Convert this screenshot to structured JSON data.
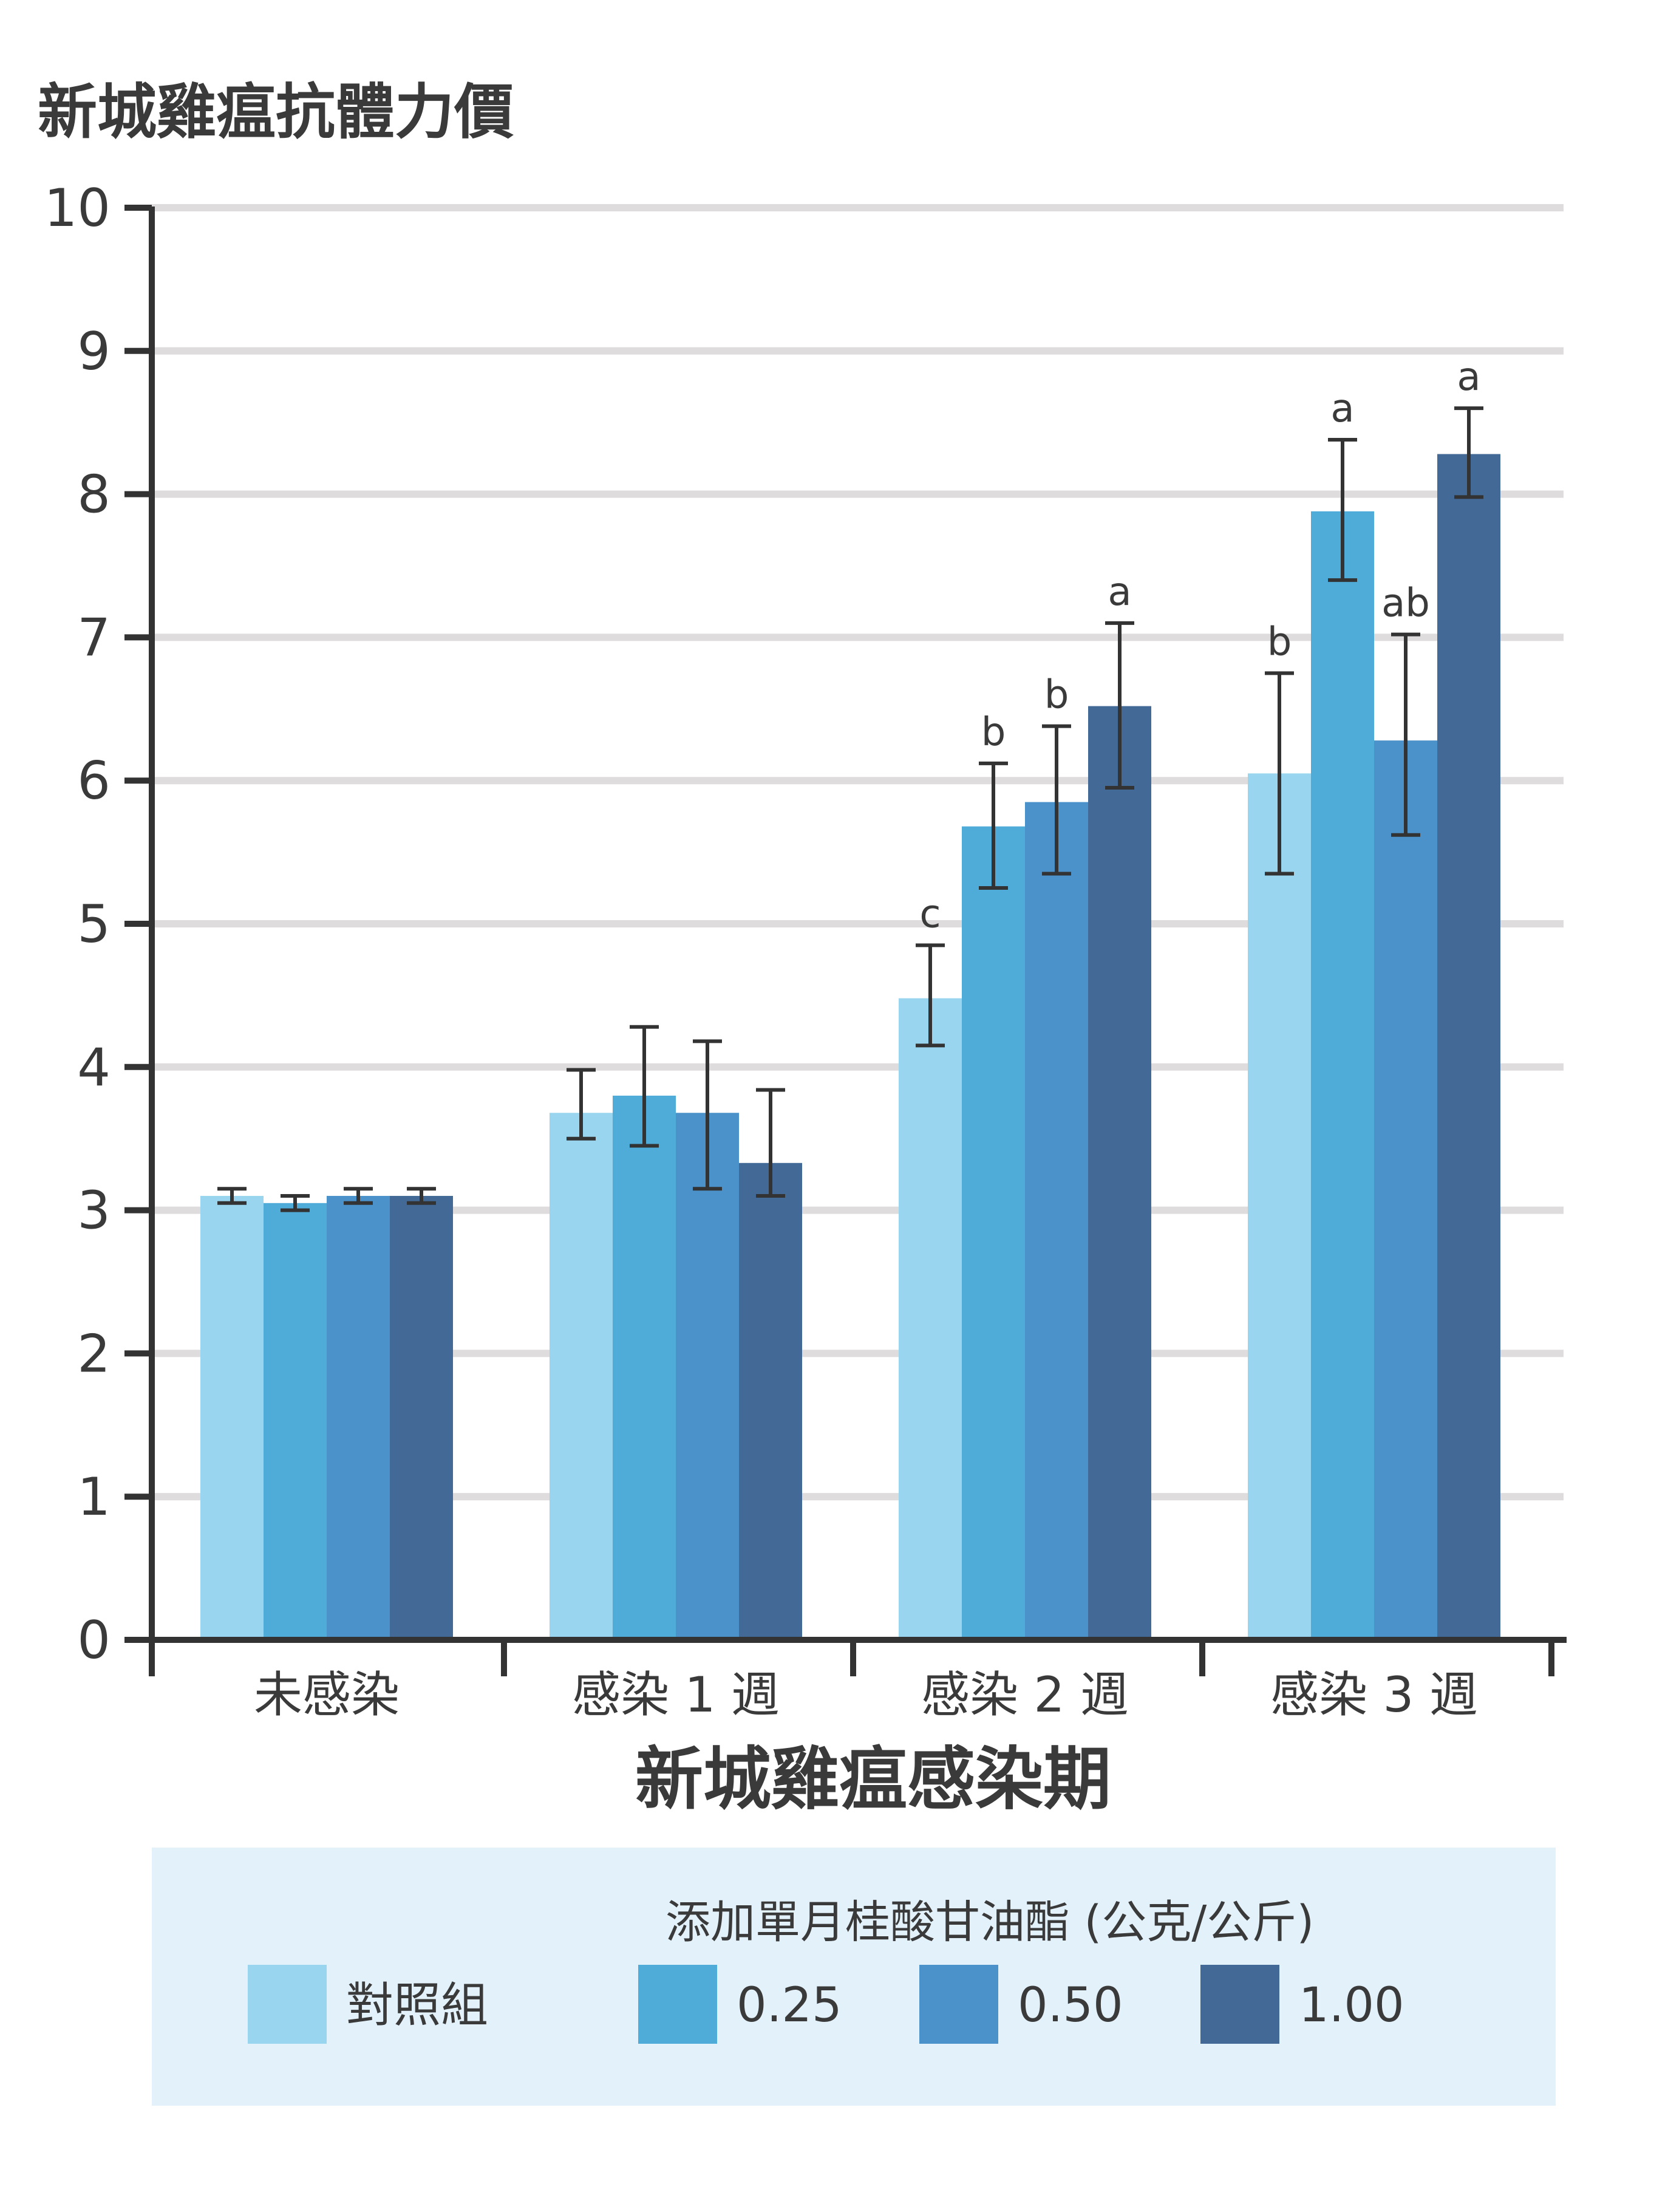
{
  "chart_data": {
    "type": "bar",
    "ylabel": "新城雞瘟抗體力價",
    "xlabel": "新城雞瘟感染期",
    "ylim": [
      0,
      10
    ],
    "yticks": [
      0,
      1,
      2,
      3,
      4,
      5,
      6,
      7,
      8,
      9,
      10
    ],
    "grid": true,
    "categories": [
      "未感染",
      "感染 1 週",
      "感染 2 週",
      "感染 3 週"
    ],
    "legend": {
      "title": "添加單月桂酸甘油酯 (公克/公斤)",
      "placement": "bottom"
    },
    "series": [
      {
        "name": "對照組",
        "color": "#99d5ee",
        "values": [
          3.1,
          3.68,
          4.48,
          6.05
        ],
        "err_low": [
          3.05,
          3.5,
          4.15,
          5.35
        ],
        "err_high": [
          3.15,
          3.98,
          4.85,
          6.75
        ],
        "labels": [
          "",
          "",
          "c",
          "b"
        ]
      },
      {
        "name": "0.25",
        "color": "#4facd9",
        "values": [
          3.05,
          3.8,
          5.68,
          7.88
        ],
        "err_low": [
          3.0,
          3.45,
          5.25,
          7.4
        ],
        "err_high": [
          3.1,
          4.28,
          6.12,
          8.38
        ],
        "labels": [
          "",
          "",
          "b",
          "a"
        ]
      },
      {
        "name": "0.50",
        "color": "#4a92c9",
        "values": [
          3.1,
          3.68,
          5.85,
          6.28
        ],
        "err_low": [
          3.05,
          3.15,
          5.35,
          5.62
        ],
        "err_high": [
          3.15,
          4.18,
          6.38,
          7.02
        ],
        "labels": [
          "",
          "",
          "b",
          "ab"
        ]
      },
      {
        "name": "1.00",
        "color": "#436a97",
        "values": [
          3.1,
          3.33,
          6.52,
          8.28
        ],
        "err_low": [
          3.05,
          3.1,
          5.95,
          7.98
        ],
        "err_high": [
          3.15,
          3.84,
          7.1,
          8.6
        ],
        "labels": [
          "",
          "",
          "a",
          "a"
        ]
      }
    ]
  }
}
